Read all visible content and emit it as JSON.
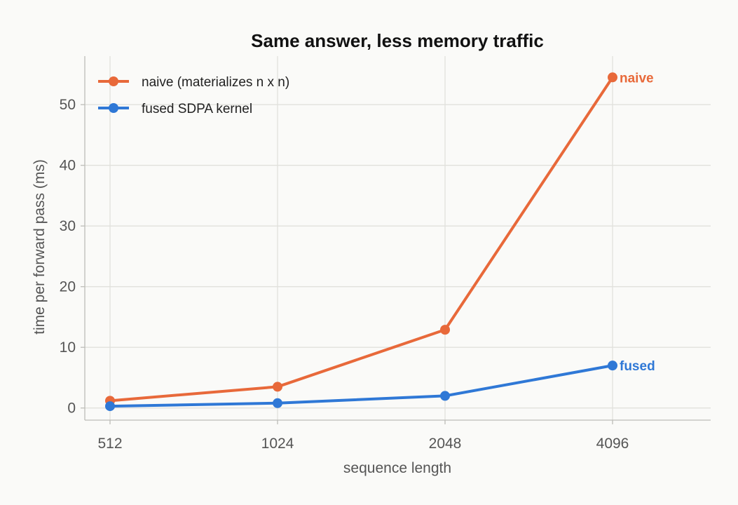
{
  "chart_data": {
    "type": "line",
    "title": "Same answer, less memory traffic",
    "xlabel": "sequence length",
    "ylabel": "time per forward pass (ms)",
    "categories": [
      "512",
      "1024",
      "2048",
      "4096"
    ],
    "ylim": [
      -2,
      58
    ],
    "yticks": [
      0,
      10,
      20,
      30,
      40,
      50
    ],
    "grid": true,
    "legend_position": "top-left",
    "series": [
      {
        "name": "naive (materializes n x n)",
        "end_label": "naive",
        "color": "#e8693a",
        "values": [
          1.2,
          3.5,
          12.9,
          54.5
        ]
      },
      {
        "name": "fused SDPA kernel",
        "end_label": "fused",
        "color": "#2f78d6",
        "values": [
          0.3,
          0.8,
          2.0,
          7.0
        ]
      }
    ]
  }
}
